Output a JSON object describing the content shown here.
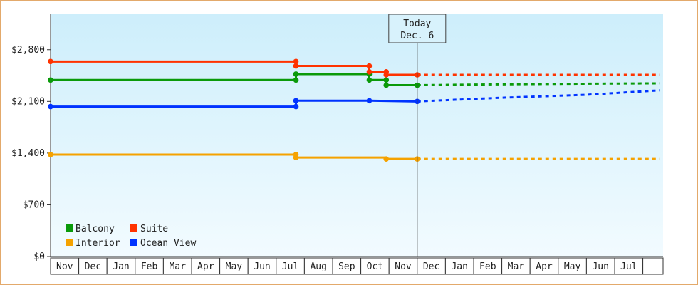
{
  "chart_data": {
    "type": "line",
    "title": "",
    "xlabel": "",
    "ylabel": "",
    "y_tick_labels": [
      "$0",
      "$700",
      "$1,400",
      "$2,100",
      "$2,800"
    ],
    "y_ticks": [
      0,
      700,
      1400,
      2100,
      2800
    ],
    "ylim": [
      0,
      3280
    ],
    "x_tick_labels": [
      "Nov",
      "Dec",
      "Jan",
      "Feb",
      "Mar",
      "Apr",
      "May",
      "Jun",
      "Jul",
      "Aug",
      "Sep",
      "Oct",
      "Nov",
      "Dec",
      "Jan",
      "Feb",
      "Mar",
      "Apr",
      "May",
      "Jun",
      "Jul"
    ],
    "today_marker": {
      "line1": "Today",
      "line2": "Dec. 6",
      "month_index": 13.0
    },
    "grid": false,
    "legend_position": "bottom-left",
    "series": [
      {
        "name": "Balcony",
        "color": "#0a9a0a",
        "history": [
          [
            0,
            2390
          ],
          [
            8.7,
            2390
          ],
          [
            8.7,
            2470
          ],
          [
            11.3,
            2470
          ],
          [
            11.3,
            2390
          ],
          [
            11.9,
            2390
          ],
          [
            11.9,
            2320
          ],
          [
            13.0,
            2320
          ]
        ],
        "markers": [
          [
            0,
            2390
          ],
          [
            8.7,
            2390
          ],
          [
            8.7,
            2470
          ],
          [
            11.3,
            2470
          ],
          [
            11.3,
            2390
          ],
          [
            11.9,
            2390
          ],
          [
            11.9,
            2320
          ],
          [
            13.0,
            2320
          ]
        ],
        "forecast": [
          [
            13.0,
            2320
          ],
          [
            15.5,
            2330
          ],
          [
            19.0,
            2340
          ],
          [
            21.6,
            2345
          ]
        ]
      },
      {
        "name": "Suite",
        "color": "#ff3300",
        "history": [
          [
            0,
            2640
          ],
          [
            8.7,
            2640
          ],
          [
            8.7,
            2580
          ],
          [
            11.3,
            2580
          ],
          [
            11.3,
            2500
          ],
          [
            11.9,
            2500
          ],
          [
            11.9,
            2460
          ],
          [
            13.0,
            2460
          ]
        ],
        "markers": [
          [
            0,
            2640
          ],
          [
            8.7,
            2640
          ],
          [
            8.7,
            2580
          ],
          [
            11.3,
            2580
          ],
          [
            11.3,
            2500
          ],
          [
            11.9,
            2500
          ],
          [
            11.9,
            2460
          ],
          [
            13.0,
            2460
          ]
        ],
        "forecast": [
          [
            13.0,
            2460
          ],
          [
            21.6,
            2460
          ]
        ]
      },
      {
        "name": "Interior",
        "color": "#f5a200",
        "history": [
          [
            0,
            1380
          ],
          [
            8.7,
            1380
          ],
          [
            8.7,
            1340
          ],
          [
            11.9,
            1340
          ],
          [
            11.9,
            1320
          ],
          [
            13.0,
            1320
          ]
        ],
        "markers": [
          [
            0,
            1380
          ],
          [
            8.7,
            1380
          ],
          [
            8.7,
            1340
          ],
          [
            11.9,
            1320
          ],
          [
            13.0,
            1320
          ]
        ],
        "forecast": [
          [
            13.0,
            1320
          ],
          [
            21.6,
            1320
          ]
        ]
      },
      {
        "name": "Ocean View",
        "color": "#0033ff",
        "history": [
          [
            0,
            2030
          ],
          [
            8.7,
            2030
          ],
          [
            8.7,
            2110
          ],
          [
            11.3,
            2110
          ],
          [
            13.0,
            2100
          ]
        ],
        "markers": [
          [
            0,
            2030
          ],
          [
            8.7,
            2030
          ],
          [
            8.7,
            2110
          ],
          [
            11.3,
            2110
          ],
          [
            13.0,
            2100
          ]
        ],
        "forecast": [
          [
            13.0,
            2100
          ],
          [
            16.0,
            2150
          ],
          [
            19.0,
            2190
          ],
          [
            21.6,
            2250
          ]
        ]
      }
    ]
  }
}
